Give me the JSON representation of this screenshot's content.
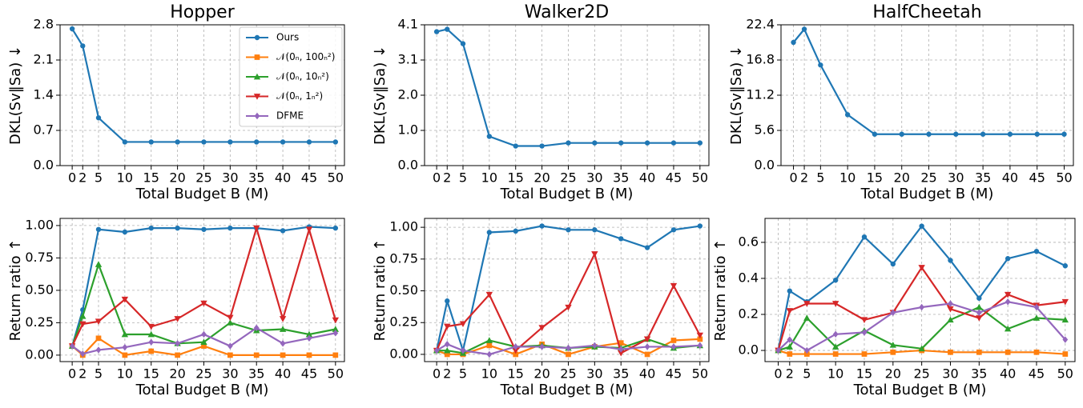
{
  "chart_data": [
    {
      "type": "line",
      "title": "Hopper",
      "xlabel": "Total Budget B (M)",
      "ylabel": "DKL(Sv‖Sa) ↓",
      "x": [
        0,
        2,
        5,
        10,
        15,
        20,
        25,
        30,
        35,
        40,
        45,
        50
      ],
      "series": [
        {
          "name": "Ours",
          "color": "#1f77b4",
          "marker": "o",
          "values": [
            2.72,
            2.38,
            0.95,
            0.47,
            0.47,
            0.47,
            0.47,
            0.47,
            0.47,
            0.47,
            0.47,
            0.47
          ]
        }
      ],
      "xlim": [
        -2.3,
        51.7
      ],
      "ylim": [
        0,
        2.8
      ],
      "xticks": [
        0,
        2,
        5,
        10,
        15,
        20,
        25,
        30,
        35,
        40,
        45,
        50
      ],
      "yticks": [
        {
          "value": 0,
          "label": "0.0"
        },
        0.7,
        1.4,
        2.1,
        2.8
      ],
      "grid": true,
      "legend": "upper right"
    },
    {
      "type": "line",
      "title": "Walker2D",
      "xlabel": "Total Budget B (M)",
      "ylabel": "DKL(Sv‖Sa) ↓",
      "x": [
        0,
        2,
        5,
        10,
        15,
        20,
        25,
        30,
        35,
        40,
        45,
        50
      ],
      "series": [
        {
          "name": "Ours",
          "color": "#1f77b4",
          "marker": "o",
          "values": [
            3.9,
            3.97,
            3.55,
            0.85,
            0.57,
            0.57,
            0.66,
            0.66,
            0.66,
            0.66,
            0.66,
            0.66
          ]
        }
      ],
      "xlim": [
        -2.3,
        51.7
      ],
      "ylim": [
        0,
        4.1
      ],
      "xticks": [
        0,
        2,
        5,
        10,
        15,
        20,
        25,
        30,
        35,
        40,
        45,
        50
      ],
      "yticks": [
        {
          "value": 0,
          "label": "0.0"
        },
        {
          "value": 1.025,
          "label": "1.0"
        },
        {
          "value": 2.05,
          "label": "2.0"
        },
        {
          "value": 3.075,
          "label": "3.1"
        },
        4.1
      ],
      "grid": true
    },
    {
      "type": "line",
      "title": "HalfCheetah",
      "xlabel": "Total Budget B (M)",
      "ylabel": "DKL(Sv‖Sa) ↓",
      "x": [
        0,
        2,
        5,
        10,
        15,
        20,
        25,
        30,
        35,
        40,
        45,
        50
      ],
      "series": [
        {
          "name": "Ours",
          "color": "#1f77b4",
          "marker": "o",
          "values": [
            19.6,
            21.7,
            16.0,
            8.1,
            5.0,
            5.0,
            5.0,
            5.0,
            5.0,
            5.0,
            5.0,
            5.0
          ]
        }
      ],
      "xlim": [
        -2.3,
        51.7
      ],
      "ylim": [
        0,
        22.4
      ],
      "xticks": [
        0,
        2,
        5,
        10,
        15,
        20,
        25,
        30,
        35,
        40,
        45,
        50
      ],
      "yticks": [
        {
          "value": 0,
          "label": "0.0"
        },
        5.6,
        11.2,
        16.8,
        22.4
      ],
      "grid": true
    },
    {
      "type": "line",
      "xlabel": "Total Budget B (M)",
      "ylabel": "Return ratio ↑",
      "x": [
        0,
        2,
        5,
        10,
        15,
        20,
        25,
        30,
        35,
        40,
        45,
        50
      ],
      "series": [
        {
          "name": "Ours",
          "color": "#1f77b4",
          "marker": "o",
          "values": [
            0.07,
            0.35,
            0.97,
            0.95,
            0.98,
            0.98,
            0.97,
            0.98,
            0.98,
            0.96,
            0.99,
            0.98
          ]
        },
        {
          "name": "𝒩(0ₙ, 100ₙ²)",
          "color": "#ff7f0e",
          "marker": "s",
          "values": [
            0.07,
            0.0,
            0.13,
            0.0,
            0.03,
            0.0,
            0.07,
            0.0,
            0.0,
            0.0,
            0.0,
            0.0
          ]
        },
        {
          "name": "𝒩(0ₙ, 10ₙ²)",
          "color": "#2ca02c",
          "marker": "^",
          "values": [
            0.07,
            0.3,
            0.7,
            0.16,
            0.16,
            0.09,
            0.1,
            0.25,
            0.19,
            0.2,
            0.16,
            0.2
          ]
        },
        {
          "name": "𝒩(0ₙ, 1ₙ²)",
          "color": "#d62728",
          "marker": "v",
          "values": [
            0.07,
            0.24,
            0.26,
            0.43,
            0.22,
            0.28,
            0.4,
            0.29,
            0.98,
            0.28,
            0.97,
            0.27
          ]
        },
        {
          "name": "DFME",
          "color": "#9467bd",
          "marker": "D",
          "values": [
            0.07,
            0.01,
            0.04,
            0.06,
            0.1,
            0.09,
            0.16,
            0.07,
            0.21,
            0.09,
            0.13,
            0.17
          ]
        }
      ],
      "xlim": [
        -2.3,
        51.7
      ],
      "ylim": [
        -0.05,
        1.055
      ],
      "xticks": [
        0,
        2,
        5,
        10,
        15,
        20,
        25,
        30,
        35,
        40,
        45,
        50
      ],
      "yticks": [
        {
          "value": 0,
          "label": "0.00"
        },
        0.25,
        {
          "value": 0.5,
          "label": "0.50"
        },
        0.75,
        {
          "value": 1,
          "label": "1.00"
        }
      ],
      "grid": true
    },
    {
      "type": "line",
      "xlabel": "Total Budget B (M)",
      "ylabel": "Return ratio ↑",
      "x": [
        0,
        2,
        5,
        10,
        15,
        20,
        25,
        30,
        35,
        40,
        45,
        50
      ],
      "series": [
        {
          "name": "Ours",
          "color": "#1f77b4",
          "marker": "o",
          "values": [
            0.03,
            0.42,
            0.03,
            0.96,
            0.97,
            1.01,
            0.98,
            0.98,
            0.91,
            0.84,
            0.98,
            1.01
          ]
        },
        {
          "name": "𝒩(0ₙ, 100ₙ²)",
          "color": "#ff7f0e",
          "marker": "s",
          "values": [
            0.03,
            0.0,
            0.0,
            0.07,
            0.0,
            0.08,
            0.0,
            0.06,
            0.09,
            0.0,
            0.11,
            0.12
          ]
        },
        {
          "name": "𝒩(0ₙ, 10ₙ²)",
          "color": "#2ca02c",
          "marker": "^",
          "values": [
            0.03,
            0.03,
            0.01,
            0.11,
            0.06,
            0.07,
            0.05,
            0.06,
            0.05,
            0.12,
            0.05,
            0.07
          ]
        },
        {
          "name": "𝒩(0ₙ, 1ₙ²)",
          "color": "#d62728",
          "marker": "v",
          "values": [
            0.03,
            0.22,
            0.24,
            0.47,
            0.03,
            0.21,
            0.37,
            0.79,
            0.01,
            0.12,
            0.54,
            0.15
          ]
        },
        {
          "name": "DFME",
          "color": "#9467bd",
          "marker": "D",
          "values": [
            0.03,
            0.08,
            0.03,
            0.0,
            0.06,
            0.06,
            0.05,
            0.07,
            0.04,
            0.06,
            0.06,
            0.07
          ]
        }
      ],
      "xlim": [
        -2.3,
        51.7
      ],
      "ylim": [
        -0.057,
        1.07
      ],
      "xticks": [
        0,
        2,
        5,
        10,
        15,
        20,
        25,
        30,
        35,
        40,
        45,
        50
      ],
      "yticks": [
        {
          "value": 0,
          "label": "0.00"
        },
        0.25,
        {
          "value": 0.5,
          "label": "0.50"
        },
        0.75,
        {
          "value": 1,
          "label": "1.00"
        }
      ],
      "grid": true
    },
    {
      "type": "line",
      "xlabel": "Total Budget B (M)",
      "ylabel": "Return ratio ↑",
      "x": [
        0,
        2,
        5,
        10,
        15,
        20,
        25,
        30,
        35,
        40,
        45,
        50
      ],
      "series": [
        {
          "name": "Ours",
          "color": "#1f77b4",
          "marker": "o",
          "values": [
            0.0,
            0.33,
            0.27,
            0.39,
            0.63,
            0.48,
            0.69,
            0.5,
            0.29,
            0.51,
            0.55,
            0.47
          ]
        },
        {
          "name": "𝒩(0ₙ, 100ₙ²)",
          "color": "#ff7f0e",
          "marker": "s",
          "values": [
            0.0,
            -0.02,
            -0.02,
            -0.02,
            -0.02,
            -0.01,
            0.0,
            -0.01,
            -0.01,
            -0.01,
            -0.01,
            -0.02
          ]
        },
        {
          "name": "𝒩(0ₙ, 10ₙ²)",
          "color": "#2ca02c",
          "marker": "^",
          "values": [
            0.0,
            0.02,
            0.18,
            0.02,
            0.11,
            0.03,
            0.01,
            0.17,
            0.24,
            0.12,
            0.18,
            0.17
          ]
        },
        {
          "name": "𝒩(0ₙ, 1ₙ²)",
          "color": "#d62728",
          "marker": "v",
          "values": [
            0.0,
            0.22,
            0.26,
            0.26,
            0.17,
            0.21,
            0.46,
            0.23,
            0.18,
            0.31,
            0.25,
            0.27
          ]
        },
        {
          "name": "DFME",
          "color": "#9467bd",
          "marker": "D",
          "values": [
            0.0,
            0.06,
            0.0,
            0.09,
            0.1,
            0.21,
            0.24,
            0.26,
            0.21,
            0.27,
            0.24,
            0.06
          ]
        }
      ],
      "xlim": [
        -2.3,
        51.7
      ],
      "ylim": [
        -0.062,
        0.733
      ],
      "xticks": [
        0,
        2,
        5,
        10,
        15,
        20,
        25,
        30,
        35,
        40,
        45,
        50
      ],
      "yticks": [
        {
          "value": 0,
          "label": "0.0"
        },
        0.2,
        0.4,
        0.6
      ],
      "grid": true
    }
  ]
}
